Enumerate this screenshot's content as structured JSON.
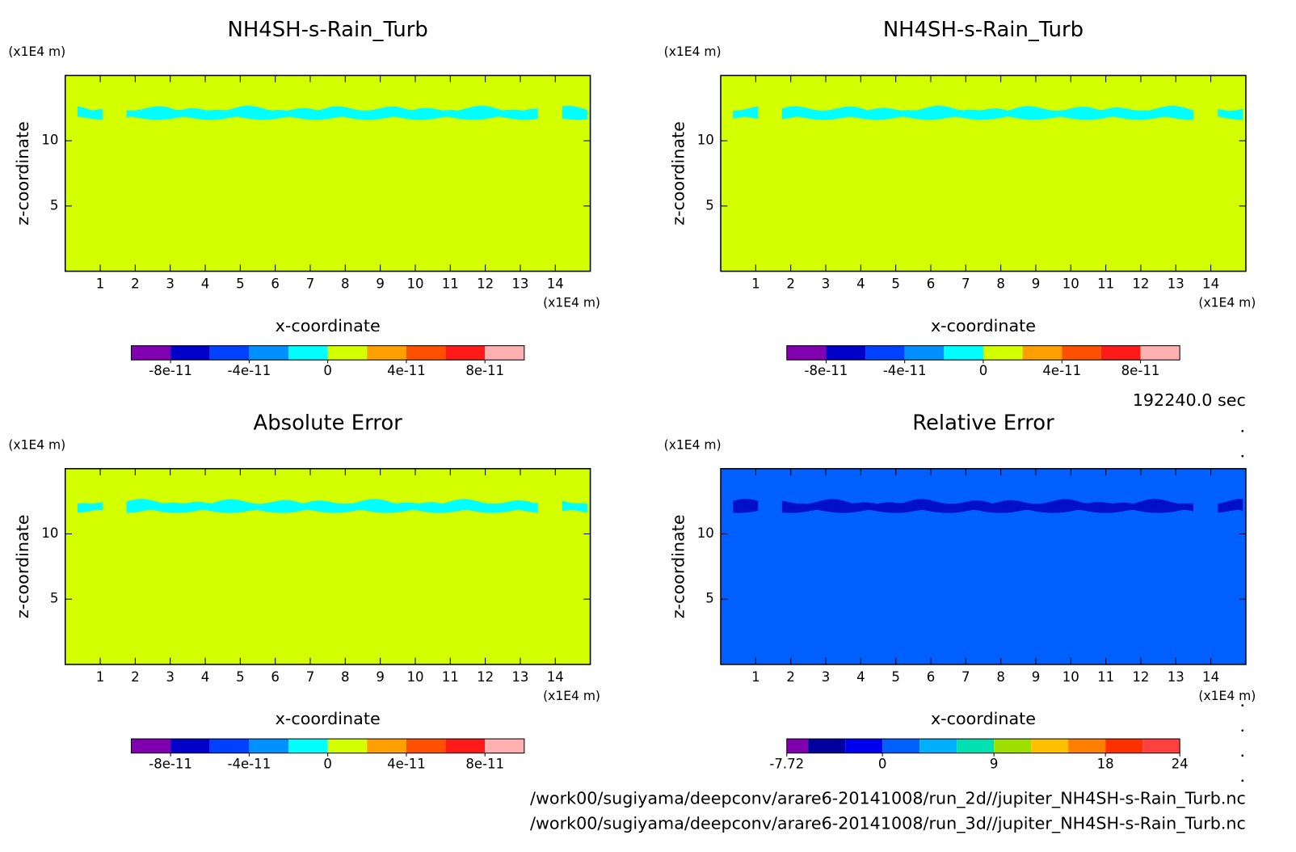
{
  "time": "192240.0 sec",
  "files": [
    "/work00/sugiyama/deepconv/arare6-20141008/run_2d//jupiter_NH4SH-s-Rain_Turb.nc",
    "/work00/sugiyama/deepconv/arare6-20141008/run_3d//jupiter_NH4SH-s-Rain_Turb.nc"
  ],
  "chart_data": [
    {
      "type": "contour",
      "title": "NH4SH-s-Rain_Turb",
      "x_label": "x-coordinate",
      "y_label": "z-coordinate",
      "x_unit": "(x1E4 m)",
      "y_unit": "(x1E4 m)",
      "xlim": [
        0,
        15
      ],
      "ylim": [
        0,
        15
      ],
      "xticks": [
        1,
        2,
        3,
        4,
        5,
        6,
        7,
        8,
        9,
        10,
        11,
        12,
        13,
        14
      ],
      "yticks": [
        5,
        10
      ],
      "field_color": "#d4ff00",
      "band_color": "#00ffff",
      "colorbar": {
        "levels": [
          -1e-10,
          -8e-11,
          -6e-11,
          -4e-11,
          -2e-11,
          0,
          2e-11,
          4e-11,
          6e-11,
          8e-11,
          1e-10
        ],
        "colors": [
          "#8000b0",
          "#0000c8",
          "#0040ff",
          "#0090ff",
          "#00ffff",
          "#d4ff00",
          "#ffa000",
          "#ff5000",
          "#ff1a1a",
          "#ffb0b0"
        ],
        "ticks": [
          -8e-11,
          -4e-11,
          0,
          4e-11,
          8e-11
        ]
      }
    },
    {
      "type": "contour",
      "title": "NH4SH-s-Rain_Turb",
      "x_label": "x-coordinate",
      "y_label": "z-coordinate",
      "x_unit": "(x1E4 m)",
      "y_unit": "(x1E4 m)",
      "xlim": [
        0,
        15
      ],
      "ylim": [
        0,
        15
      ],
      "xticks": [
        1,
        2,
        3,
        4,
        5,
        6,
        7,
        8,
        9,
        10,
        11,
        12,
        13,
        14
      ],
      "yticks": [
        5,
        10
      ],
      "field_color": "#d4ff00",
      "band_color": "#00ffff",
      "colorbar": {
        "levels": [
          -1e-10,
          -8e-11,
          -6e-11,
          -4e-11,
          -2e-11,
          0,
          2e-11,
          4e-11,
          6e-11,
          8e-11,
          1e-10
        ],
        "colors": [
          "#8000b0",
          "#0000c8",
          "#0040ff",
          "#0090ff",
          "#00ffff",
          "#d4ff00",
          "#ffa000",
          "#ff5000",
          "#ff1a1a",
          "#ffb0b0"
        ],
        "ticks": [
          -8e-11,
          -4e-11,
          0,
          4e-11,
          8e-11
        ]
      }
    },
    {
      "type": "contour",
      "title": "Absolute Error",
      "x_label": "x-coordinate",
      "y_label": "z-coordinate",
      "x_unit": "(x1E4 m)",
      "y_unit": "(x1E4 m)",
      "xlim": [
        0,
        15
      ],
      "ylim": [
        0,
        15
      ],
      "xticks": [
        1,
        2,
        3,
        4,
        5,
        6,
        7,
        8,
        9,
        10,
        11,
        12,
        13,
        14
      ],
      "yticks": [
        5,
        10
      ],
      "field_color": "#d4ff00",
      "band_color": "#00ffff",
      "colorbar": {
        "levels": [
          -1e-10,
          -8e-11,
          -6e-11,
          -4e-11,
          -2e-11,
          0,
          2e-11,
          4e-11,
          6e-11,
          8e-11,
          1e-10
        ],
        "colors": [
          "#8000b0",
          "#0000c8",
          "#0040ff",
          "#0090ff",
          "#00ffff",
          "#d4ff00",
          "#ffa000",
          "#ff5000",
          "#ff1a1a",
          "#ffb0b0"
        ],
        "ticks": [
          -8e-11,
          -4e-11,
          0,
          4e-11,
          8e-11
        ]
      }
    },
    {
      "type": "contour",
      "title": "Relative Error",
      "x_label": "x-coordinate",
      "y_label": "z-coordinate",
      "x_unit": "(x1E4 m)",
      "y_unit": "(x1E4 m)",
      "xlim": [
        0,
        15
      ],
      "ylim": [
        0,
        15
      ],
      "xticks": [
        1,
        2,
        3,
        4,
        5,
        6,
        7,
        8,
        9,
        10,
        11,
        12,
        13,
        14
      ],
      "yticks": [
        5,
        10
      ],
      "field_color": "#0060ff",
      "band_color": "#0010c8",
      "colorbar": {
        "levels": [
          -7.72,
          -6,
          -3,
          0,
          3,
          6,
          9,
          12,
          15,
          18,
          21,
          24
        ],
        "colors": [
          "#8000b0",
          "#0000a0",
          "#0000f0",
          "#0060ff",
          "#00b0ff",
          "#00e0b0",
          "#a0e000",
          "#ffc000",
          "#ff8000",
          "#ff3000",
          "#ff4040"
        ],
        "ticks": [
          -7.72,
          0,
          9,
          18,
          24
        ]
      }
    }
  ]
}
